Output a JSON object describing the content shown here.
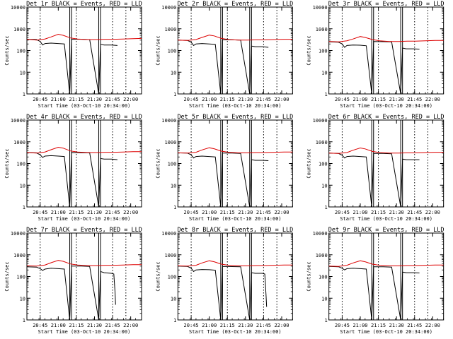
{
  "chart_data": [
    {
      "type": "line",
      "title": "Det 1r BLACK = Events, RED = LLD",
      "xlabel": "Start Time (03-Oct-10 20:34:00)",
      "ylabel": "Counts/sec",
      "x_ticks": [
        "20:45",
        "21:00",
        "21:15",
        "21:30",
        "21:45",
        "22:00"
      ],
      "y_ticks": [
        "1",
        "10",
        "100",
        "1000",
        "10000"
      ],
      "y_scale": "log",
      "ylim": [
        1,
        10000
      ],
      "xlim_minutes": [
        0,
        95
      ],
      "vlines_dotted_minutes": [
        11,
        41,
        71,
        82
      ],
      "vlines_solid_minutes": [
        35.5,
        37,
        59.5,
        61
      ],
      "series": [
        {
          "name": "Events",
          "color": "#000000",
          "x": [
            0,
            8,
            11,
            13,
            15,
            20,
            26,
            31,
            35.5,
            37,
            45,
            52,
            59.5,
            61,
            64,
            70,
            75
          ],
          "y": [
            330,
            320,
            260,
            180,
            210,
            220,
            210,
            200,
            1,
            330,
            330,
            320,
            1,
            190,
            180,
            180,
            170
          ]
        },
        {
          "name": "LLD",
          "color": "#dd0000",
          "x": [
            0,
            8,
            15,
            20,
            26,
            30,
            36,
            42,
            50,
            58,
            65,
            72,
            80,
            88,
            95
          ],
          "y": [
            330,
            300,
            340,
            420,
            560,
            500,
            380,
            340,
            320,
            320,
            330,
            330,
            340,
            350,
            360
          ]
        }
      ]
    },
    {
      "type": "line",
      "title": "Det 2r BLACK = Events, RED = LLD",
      "xlabel": "Start Time (03-Oct-10 20:34:00)",
      "ylabel": "Counts/sec",
      "x_ticks": [
        "20:45",
        "21:00",
        "21:15",
        "21:30",
        "21:45",
        "22:00"
      ],
      "y_ticks": [
        "1",
        "10",
        "100",
        "1000",
        "10000"
      ],
      "y_scale": "log",
      "ylim": [
        1,
        10000
      ],
      "xlim_minutes": [
        0,
        95
      ],
      "vlines_dotted_minutes": [
        11,
        41,
        71,
        82
      ],
      "vlines_solid_minutes": [
        35.5,
        37,
        59.5,
        61
      ],
      "series": [
        {
          "name": "Events",
          "color": "#000000",
          "x": [
            0,
            8,
            11,
            13,
            15,
            20,
            26,
            31,
            35.5,
            37,
            45,
            52,
            59.5,
            61,
            64,
            70,
            75
          ],
          "y": [
            300,
            290,
            240,
            170,
            200,
            210,
            200,
            190,
            1,
            310,
            310,
            300,
            1,
            160,
            150,
            150,
            140
          ]
        },
        {
          "name": "LLD",
          "color": "#dd0000",
          "x": [
            0,
            8,
            15,
            20,
            26,
            30,
            36,
            42,
            50,
            58,
            65,
            72,
            80,
            88,
            95
          ],
          "y": [
            300,
            290,
            320,
            400,
            510,
            470,
            360,
            320,
            300,
            300,
            310,
            310,
            320,
            330,
            330
          ]
        }
      ]
    },
    {
      "type": "line",
      "title": "Det 3r BLACK = Events, RED = LLD",
      "xlabel": "Start Time (03-Oct-10 20:34:00)",
      "ylabel": "Counts/sec",
      "x_ticks": [
        "20:45",
        "21:00",
        "21:15",
        "21:30",
        "21:45",
        "22:00"
      ],
      "y_ticks": [
        "1",
        "10",
        "100",
        "1000",
        "10000"
      ],
      "y_scale": "log",
      "ylim": [
        1,
        10000
      ],
      "xlim_minutes": [
        0,
        95
      ],
      "vlines_dotted_minutes": [
        11,
        41,
        71,
        82
      ],
      "vlines_solid_minutes": [
        35.5,
        37,
        59.5,
        61
      ],
      "series": [
        {
          "name": "Events",
          "color": "#000000",
          "x": [
            0,
            8,
            11,
            13,
            15,
            20,
            26,
            31,
            35.5,
            37,
            45,
            52,
            59.5,
            61,
            64,
            70,
            75
          ],
          "y": [
            250,
            240,
            200,
            140,
            170,
            180,
            175,
            165,
            1,
            260,
            255,
            250,
            1,
            130,
            120,
            120,
            115
          ]
        },
        {
          "name": "LLD",
          "color": "#dd0000",
          "x": [
            0,
            8,
            15,
            20,
            26,
            30,
            36,
            42,
            50,
            58,
            65,
            72,
            80,
            88,
            95
          ],
          "y": [
            260,
            250,
            280,
            340,
            440,
            400,
            320,
            280,
            260,
            260,
            270,
            270,
            280,
            290,
            290
          ]
        }
      ]
    },
    {
      "type": "line",
      "title": "Det 4r BLACK = Events, RED = LLD",
      "xlabel": "Start Time (03-Oct-10 20:34:00)",
      "ylabel": "Counts/sec",
      "x_ticks": [
        "20:45",
        "21:00",
        "21:15",
        "21:30",
        "21:45",
        "22:00"
      ],
      "y_ticks": [
        "1",
        "10",
        "100",
        "1000",
        "10000"
      ],
      "y_scale": "log",
      "ylim": [
        1,
        10000
      ],
      "xlim_minutes": [
        0,
        95
      ],
      "vlines_dotted_minutes": [
        11,
        41,
        71,
        82
      ],
      "vlines_solid_minutes": [
        35.5,
        37,
        59.5,
        61
      ],
      "series": [
        {
          "name": "Events",
          "color": "#000000",
          "x": [
            0,
            8,
            11,
            13,
            15,
            20,
            26,
            31,
            35.5,
            37,
            45,
            52,
            59.5,
            61,
            64,
            70,
            75
          ],
          "y": [
            320,
            310,
            250,
            190,
            220,
            230,
            220,
            210,
            1,
            320,
            315,
            310,
            1,
            170,
            160,
            160,
            150
          ]
        },
        {
          "name": "LLD",
          "color": "#dd0000",
          "x": [
            0,
            8,
            15,
            20,
            26,
            30,
            36,
            42,
            50,
            58,
            65,
            72,
            80,
            88,
            95
          ],
          "y": [
            320,
            300,
            340,
            430,
            560,
            510,
            380,
            340,
            320,
            320,
            330,
            330,
            340,
            350,
            350
          ]
        }
      ]
    },
    {
      "type": "line",
      "title": "Det 5r BLACK = Events, RED = LLD",
      "xlabel": "Start Time (03-Oct-10 20:34:00)",
      "ylabel": "Counts/sec",
      "x_ticks": [
        "20:45",
        "21:00",
        "21:15",
        "21:30",
        "21:45",
        "22:00"
      ],
      "y_ticks": [
        "1",
        "10",
        "100",
        "1000",
        "10000"
      ],
      "y_scale": "log",
      "ylim": [
        1,
        10000
      ],
      "xlim_minutes": [
        0,
        95
      ],
      "vlines_dotted_minutes": [
        11,
        41,
        71,
        82
      ],
      "vlines_solid_minutes": [
        35.5,
        37,
        59.5,
        61
      ],
      "series": [
        {
          "name": "Events",
          "color": "#000000",
          "x": [
            0,
            8,
            11,
            13,
            15,
            20,
            26,
            31,
            35.5,
            37,
            45,
            52,
            59.5,
            61,
            64,
            70,
            75
          ],
          "y": [
            310,
            300,
            250,
            180,
            210,
            220,
            210,
            200,
            1,
            300,
            300,
            290,
            1,
            150,
            140,
            140,
            135
          ]
        },
        {
          "name": "LLD",
          "color": "#dd0000",
          "x": [
            0,
            8,
            15,
            20,
            26,
            30,
            36,
            42,
            50,
            58,
            65,
            72,
            80,
            88,
            95
          ],
          "y": [
            310,
            300,
            330,
            420,
            530,
            480,
            370,
            330,
            310,
            310,
            320,
            320,
            330,
            340,
            340
          ]
        }
      ]
    },
    {
      "type": "line",
      "title": "Det 6r BLACK = Events, RED = LLD",
      "xlabel": "Start Time (03-Oct-10 20:34:00)",
      "ylabel": "Counts/sec",
      "x_ticks": [
        "20:45",
        "21:00",
        "21:15",
        "21:30",
        "21:45",
        "22:00"
      ],
      "y_ticks": [
        "1",
        "10",
        "100",
        "1000",
        "10000"
      ],
      "y_scale": "log",
      "ylim": [
        1,
        10000
      ],
      "xlim_minutes": [
        0,
        95
      ],
      "vlines_dotted_minutes": [
        11,
        41,
        71,
        82
      ],
      "vlines_solid_minutes": [
        35.5,
        37,
        59.5,
        61
      ],
      "series": [
        {
          "name": "Events",
          "color": "#000000",
          "x": [
            0,
            8,
            11,
            13,
            15,
            20,
            26,
            31,
            35.5,
            37,
            45,
            52,
            59.5,
            61,
            64,
            70,
            75
          ],
          "y": [
            300,
            290,
            240,
            180,
            210,
            220,
            210,
            200,
            1,
            290,
            290,
            280,
            1,
            160,
            150,
            150,
            150
          ]
        },
        {
          "name": "LLD",
          "color": "#dd0000",
          "x": [
            0,
            8,
            15,
            20,
            26,
            30,
            36,
            42,
            50,
            58,
            65,
            72,
            80,
            88,
            95
          ],
          "y": [
            300,
            290,
            320,
            410,
            520,
            470,
            360,
            320,
            300,
            300,
            310,
            310,
            320,
            330,
            330
          ]
        }
      ]
    },
    {
      "type": "line",
      "title": "Det 7r BLACK = Events, RED = LLD",
      "xlabel": "Start Time (03-Oct-10 20:34:00)",
      "ylabel": "Counts/sec",
      "x_ticks": [
        "20:45",
        "21:00",
        "21:15",
        "21:30",
        "21:45",
        "22:00"
      ],
      "y_ticks": [
        "1",
        "10",
        "100",
        "1000",
        "10000"
      ],
      "y_scale": "log",
      "ylim": [
        1,
        10000
      ],
      "xlim_minutes": [
        0,
        95
      ],
      "vlines_dotted_minutes": [
        11,
        41,
        71,
        82
      ],
      "vlines_solid_minutes": [
        35.5,
        37,
        59.5,
        61
      ],
      "series": [
        {
          "name": "Events",
          "color": "#000000",
          "x": [
            0,
            8,
            11,
            13,
            15,
            20,
            26,
            31,
            35.5,
            37,
            45,
            52,
            59.5,
            61,
            64,
            70,
            72,
            73,
            73.5
          ],
          "y": [
            280,
            270,
            230,
            190,
            220,
            240,
            230,
            220,
            1,
            300,
            300,
            290,
            1,
            170,
            150,
            140,
            130,
            20,
            5
          ]
        },
        {
          "name": "LLD",
          "color": "#dd0000",
          "x": [
            0,
            8,
            15,
            20,
            26,
            30,
            36,
            42,
            50,
            58,
            65,
            72,
            80,
            88,
            95
          ],
          "y": [
            310,
            300,
            340,
            430,
            550,
            500,
            380,
            340,
            320,
            320,
            330,
            330,
            340,
            350,
            350
          ]
        }
      ]
    },
    {
      "type": "line",
      "title": "Det 8r BLACK = Events, RED = LLD",
      "xlabel": "Start Time (03-Oct-10 20:34:00)",
      "ylabel": "Counts/sec",
      "x_ticks": [
        "20:45",
        "21:00",
        "21:15",
        "21:30",
        "21:45",
        "22:00"
      ],
      "y_ticks": [
        "1",
        "10",
        "100",
        "1000",
        "10000"
      ],
      "y_scale": "log",
      "ylim": [
        1,
        10000
      ],
      "xlim_minutes": [
        0,
        95
      ],
      "vlines_dotted_minutes": [
        11,
        41,
        71,
        82
      ],
      "vlines_solid_minutes": [
        35.5,
        37,
        59.5,
        61
      ],
      "series": [
        {
          "name": "Events",
          "color": "#000000",
          "x": [
            0,
            8,
            11,
            13,
            15,
            20,
            26,
            31,
            35.5,
            37,
            45,
            52,
            59.5,
            61,
            64,
            70,
            72,
            73,
            73.5
          ],
          "y": [
            300,
            290,
            240,
            170,
            200,
            210,
            205,
            195,
            1,
            290,
            285,
            280,
            1,
            150,
            140,
            140,
            130,
            15,
            4
          ]
        },
        {
          "name": "LLD",
          "color": "#dd0000",
          "x": [
            0,
            8,
            15,
            20,
            26,
            30,
            36,
            42,
            50,
            58,
            65,
            72,
            80,
            88,
            95
          ],
          "y": [
            310,
            300,
            330,
            420,
            530,
            480,
            370,
            330,
            310,
            310,
            320,
            320,
            330,
            340,
            340
          ]
        }
      ]
    },
    {
      "type": "line",
      "title": "Det 9r BLACK = Events, RED = LLD",
      "xlabel": "Start Time (03-Oct-10 20:34:00)",
      "ylabel": "Counts/sec",
      "x_ticks": [
        "20:45",
        "21:00",
        "21:15",
        "21:30",
        "21:45",
        "22:00"
      ],
      "y_ticks": [
        "1",
        "10",
        "100",
        "1000",
        "10000"
      ],
      "y_scale": "log",
      "ylim": [
        1,
        10000
      ],
      "xlim_minutes": [
        0,
        95
      ],
      "vlines_dotted_minutes": [
        11,
        41,
        71,
        82
      ],
      "vlines_solid_minutes": [
        35.5,
        37,
        59.5,
        61
      ],
      "series": [
        {
          "name": "Events",
          "color": "#000000",
          "x": [
            0,
            8,
            11,
            13,
            15,
            20,
            26,
            31,
            35.5,
            37,
            45,
            52,
            59.5,
            61,
            64,
            70,
            75
          ],
          "y": [
            290,
            280,
            240,
            200,
            230,
            240,
            230,
            220,
            1,
            280,
            280,
            270,
            1,
            160,
            150,
            150,
            145
          ]
        },
        {
          "name": "LLD",
          "color": "#dd0000",
          "x": [
            0,
            8,
            15,
            20,
            26,
            30,
            36,
            42,
            50,
            58,
            65,
            72,
            80,
            88,
            95
          ],
          "y": [
            300,
            290,
            330,
            420,
            530,
            480,
            370,
            330,
            310,
            310,
            320,
            320,
            330,
            340,
            340
          ]
        }
      ]
    }
  ]
}
